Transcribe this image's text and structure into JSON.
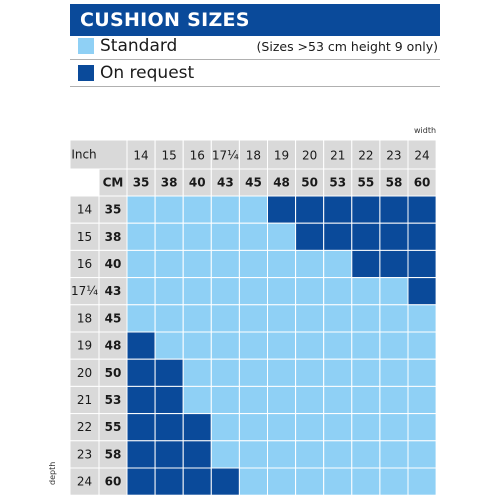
{
  "title": "CUSHION SIZES",
  "legend": [
    {
      "label": "Standard",
      "color": "#8fd0f5",
      "note": "(Sizes >53 cm height 9 only)"
    },
    {
      "label": "On request",
      "color": "#0a4a9a",
      "note": ""
    }
  ],
  "chart_data": {
    "type": "table",
    "axis_label_top": "width",
    "axis_label_side": "depth",
    "inch_header": "Inch",
    "cm_header": "CM",
    "width_inch": [
      "14",
      "15",
      "16",
      "17¼",
      "18",
      "19",
      "20",
      "21",
      "22",
      "23",
      "24"
    ],
    "width_cm": [
      "35",
      "38",
      "40",
      "43",
      "45",
      "48",
      "50",
      "53",
      "55",
      "58",
      "60"
    ],
    "depth_inch": [
      "14",
      "15",
      "16",
      "17¼",
      "18",
      "19",
      "20",
      "21",
      "22",
      "23",
      "24"
    ],
    "depth_cm": [
      "35",
      "38",
      "40",
      "43",
      "45",
      "48",
      "50",
      "53",
      "55",
      "58",
      "60"
    ],
    "cells": [
      [
        "S",
        "S",
        "S",
        "S",
        "S",
        "R",
        "R",
        "R",
        "R",
        "R",
        "R"
      ],
      [
        "S",
        "S",
        "S",
        "S",
        "S",
        "S",
        "R",
        "R",
        "R",
        "R",
        "R"
      ],
      [
        "S",
        "S",
        "S",
        "S",
        "S",
        "S",
        "S",
        "S",
        "R",
        "R",
        "R"
      ],
      [
        "S",
        "S",
        "S",
        "S",
        "S",
        "S",
        "S",
        "S",
        "S",
        "S",
        "R"
      ],
      [
        "S",
        "S",
        "S",
        "S",
        "S",
        "S",
        "S",
        "S",
        "S",
        "S",
        "S"
      ],
      [
        "R",
        "S",
        "S",
        "S",
        "S",
        "S",
        "S",
        "S",
        "S",
        "S",
        "S"
      ],
      [
        "R",
        "R",
        "S",
        "S",
        "S",
        "S",
        "S",
        "S",
        "S",
        "S",
        "S"
      ],
      [
        "R",
        "R",
        "S",
        "S",
        "S",
        "S",
        "S",
        "S",
        "S",
        "S",
        "S"
      ],
      [
        "R",
        "R",
        "R",
        "S",
        "S",
        "S",
        "S",
        "S",
        "S",
        "S",
        "S"
      ],
      [
        "R",
        "R",
        "R",
        "S",
        "S",
        "S",
        "S",
        "S",
        "S",
        "S",
        "S"
      ],
      [
        "R",
        "R",
        "R",
        "R",
        "S",
        "S",
        "S",
        "S",
        "S",
        "S",
        "S"
      ]
    ],
    "cell_codes": {
      "S": "Standard",
      "R": "On request"
    },
    "colors": {
      "standard": "#8fd0f5",
      "on_request": "#0a4a9a",
      "header_bg": "#d9d9d9"
    }
  }
}
